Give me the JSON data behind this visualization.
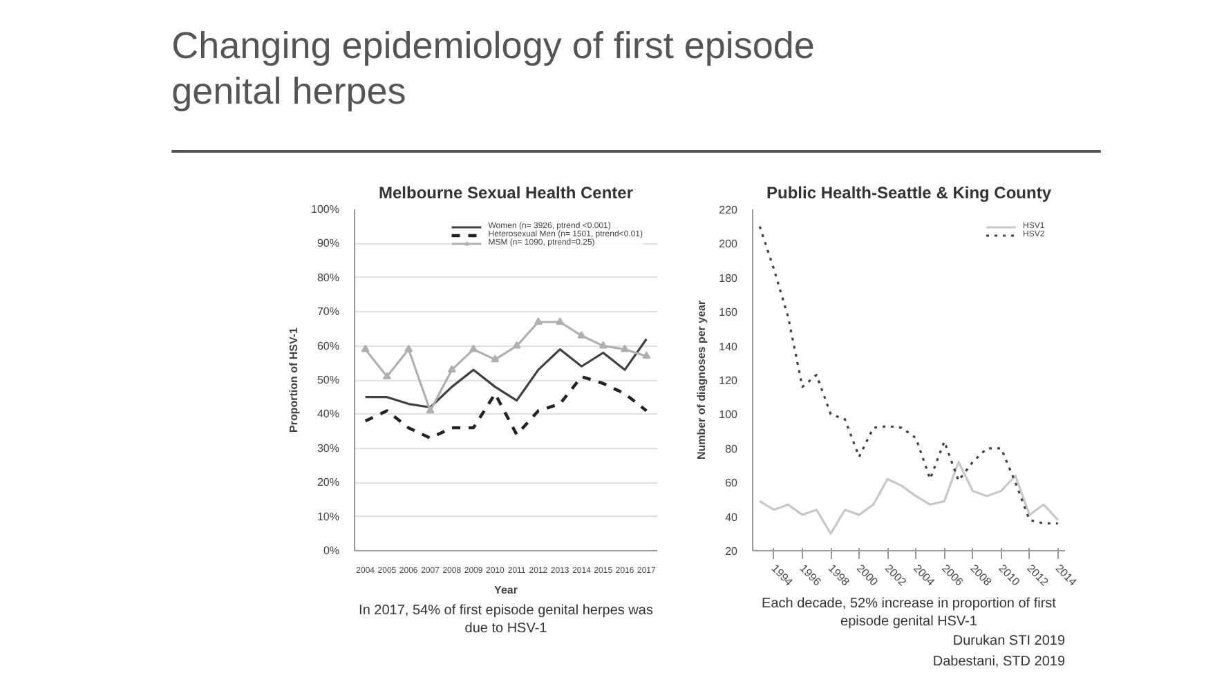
{
  "chart_data": [
    {
      "type": "other",
      "title": "Changing epidemiology of first episode genital herpes"
    },
    {
      "type": "line",
      "title": "Melbourne Sexual Health Center",
      "xlabel": "Year",
      "ylabel": "Proportion of HSV-1",
      "categories": [
        "2004",
        "2005",
        "2006",
        "2007",
        "2008",
        "2009",
        "2010",
        "2011",
        "2012",
        "2013",
        "2014",
        "2015",
        "2016",
        "2017"
      ],
      "ylim": [
        0,
        100
      ],
      "yticks": [
        {
          "value": 0,
          "label": "0%"
        },
        {
          "value": 10,
          "label": "10%"
        },
        {
          "value": 20,
          "label": "20%"
        },
        {
          "value": 30,
          "label": "30%"
        },
        {
          "value": 40,
          "label": "40%"
        },
        {
          "value": 50,
          "label": "50%"
        },
        {
          "value": 60,
          "label": "60%"
        },
        {
          "value": 70,
          "label": "70%"
        },
        {
          "value": 80,
          "label": "80%"
        },
        {
          "value": 90,
          "label": "90%"
        },
        {
          "value": 100,
          "label": "100%"
        }
      ],
      "grid": "y",
      "legend": "top right",
      "series": [
        {
          "name": "Women (n= 3926, ptrend <0.001)",
          "color": "#404040",
          "line_style": "solid",
          "values": [
            45,
            45,
            43,
            42,
            48,
            53,
            48,
            44,
            53,
            59,
            54,
            58,
            53,
            62
          ]
        },
        {
          "name": "Heterosexual Men (n= 1501, ptrend<0.01)",
          "color": "#222222",
          "line_style": "dashed",
          "values": [
            38,
            41,
            36,
            33,
            36,
            36,
            46,
            34,
            41,
            43,
            51,
            49,
            46,
            41
          ]
        },
        {
          "name": "MSM (n= 1090, ptrend=0.25)",
          "color": "#b0b0b0",
          "line_style": "solid",
          "marker": "triangle",
          "values": [
            59,
            51,
            59,
            41,
            53,
            59,
            56,
            60,
            67,
            67,
            63,
            60,
            59,
            57
          ]
        }
      ],
      "annotations": [
        "In 2017, 54% of first episode genital herpes was due to HSV-1"
      ]
    },
    {
      "type": "line",
      "title": "Public Health-Seattle & King County",
      "ylabel": "Number of diagnoses per year",
      "x": [
        1993,
        1994,
        1995,
        1996,
        1997,
        1998,
        1999,
        2000,
        2001,
        2002,
        2003,
        2004,
        2005,
        2006,
        2007,
        2008,
        2009,
        2010,
        2011,
        2012,
        2013,
        2014
      ],
      "xlim": [
        1992.5,
        2014.5
      ],
      "xticks": [
        1994,
        1996,
        1998,
        2000,
        2002,
        2004,
        2006,
        2008,
        2010,
        2012,
        2014
      ],
      "ylim": [
        20,
        220
      ],
      "yticks": [
        20,
        40,
        60,
        80,
        100,
        120,
        140,
        160,
        180,
        200,
        220
      ],
      "legend": "top right",
      "series": [
        {
          "name": "HSV1",
          "color": "#c8c8c8",
          "line_style": "solid",
          "values": [
            49,
            44,
            47,
            41,
            44,
            30,
            44,
            41,
            47,
            62,
            58,
            52,
            47,
            49,
            72,
            55,
            52,
            55,
            64,
            41,
            47,
            38
          ]
        },
        {
          "name": "HSV2",
          "color": "#404040",
          "line_style": "dotted",
          "values": [
            210,
            185,
            157,
            116,
            123,
            100,
            97,
            75,
            92,
            93,
            92,
            86,
            62,
            84,
            61,
            72,
            80,
            80,
            60,
            38,
            36,
            36
          ]
        }
      ],
      "annotations": [
        "Each decade, 52% increase in proportion of first episode genital HSV-1",
        "Durukan STI 2019",
        "Dabestani, STD 2019"
      ]
    }
  ]
}
